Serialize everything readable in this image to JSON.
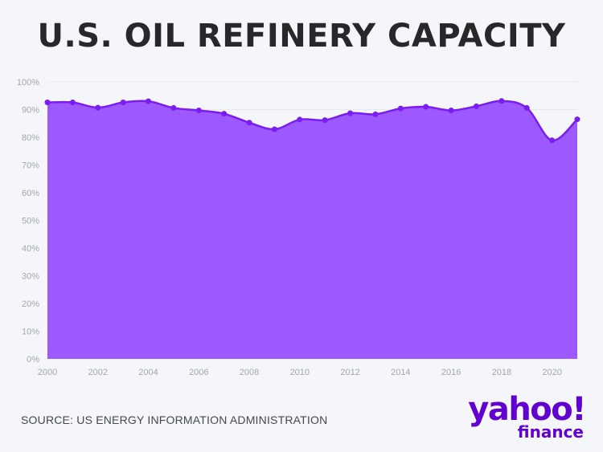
{
  "title": "U.S. OIL REFINERY CAPACITY",
  "source": "SOURCE: US ENERGY INFORMATION ADMINISTRATION",
  "logo": {
    "main": "yahoo!",
    "sub": "finance"
  },
  "colors": {
    "fill": "#9d59ff",
    "line": "#7a1cf2",
    "logo": "#6001d2"
  },
  "chart_data": {
    "type": "area",
    "title": "U.S. OIL REFINERY CAPACITY",
    "x": [
      2000,
      2001,
      2002,
      2003,
      2004,
      2005,
      2006,
      2007,
      2008,
      2009,
      2010,
      2011,
      2012,
      2013,
      2014,
      2015,
      2016,
      2017,
      2018,
      2019,
      2020,
      2021
    ],
    "series": [
      {
        "values": [
          92.6,
          92.6,
          90.7,
          92.6,
          93.0,
          90.6,
          89.7,
          88.5,
          85.3,
          82.9,
          86.4,
          86.2,
          88.7,
          88.3,
          90.4,
          91.0,
          89.7,
          91.2,
          93.1,
          90.6,
          78.9,
          86.5
        ]
      }
    ],
    "ylim": [
      0,
      100
    ],
    "yticks": [
      "0%",
      "10%",
      "20%",
      "30%",
      "40%",
      "50%",
      "60%",
      "70%",
      "80%",
      "90%",
      "100%"
    ],
    "xticks": [
      "2000",
      "2002",
      "2004",
      "2006",
      "2008",
      "2010",
      "2012",
      "2014",
      "2016",
      "2018",
      "2020"
    ],
    "grid": true,
    "xlabel": "",
    "ylabel": ""
  }
}
